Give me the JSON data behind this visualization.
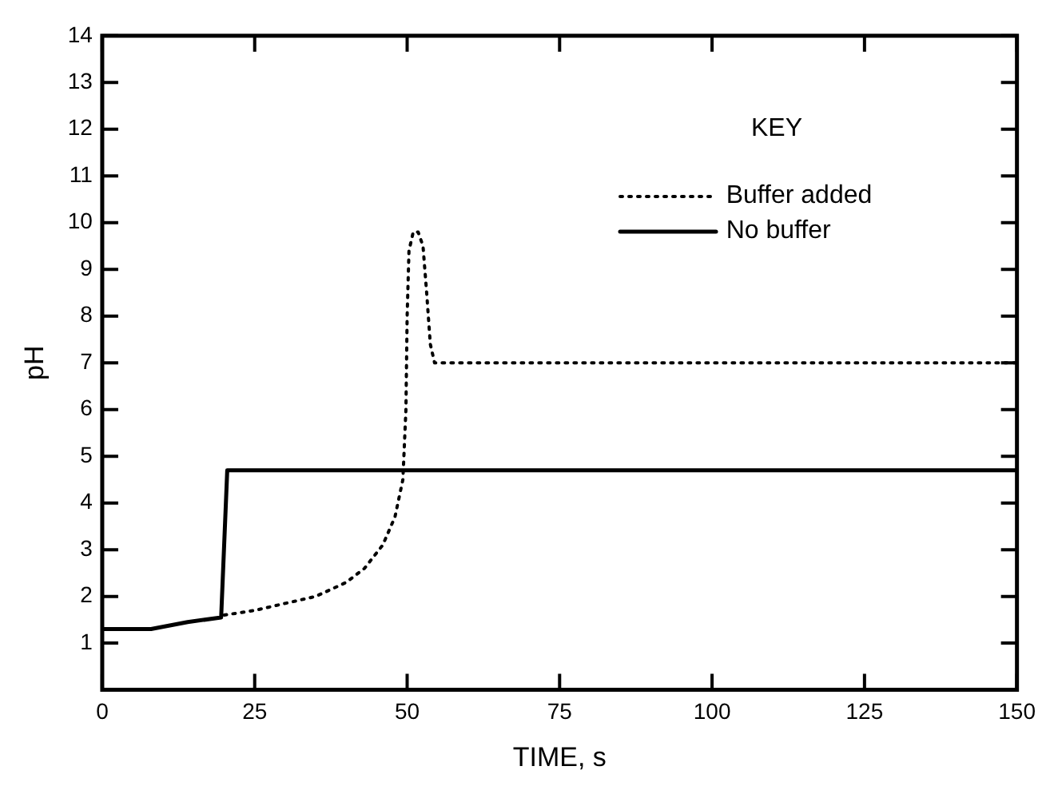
{
  "chart_data": {
    "type": "line",
    "xlabel": "TIME, s",
    "ylabel": "pH",
    "legend_title": "KEY",
    "legend": "top right",
    "grid": false,
    "marker": "none",
    "xlim": [
      0,
      150
    ],
    "xticks": [
      0,
      25,
      50,
      75,
      100,
      125,
      150
    ],
    "ylim": [
      0,
      14
    ],
    "yticks": [
      {
        "value": 0,
        "label": null
      },
      1,
      2,
      3,
      4,
      5,
      6,
      7,
      8,
      9,
      10,
      11,
      12,
      13,
      14
    ],
    "series": [
      {
        "name": "Buffer added",
        "color": "#000000",
        "line_style": "dotted",
        "x": [
          20,
          25,
          30,
          35,
          40,
          43,
          46,
          48,
          49.3,
          49.8,
          50,
          50.3,
          51,
          51.8,
          52.6,
          53.2,
          53.8,
          54.5,
          150
        ],
        "values": [
          1.6,
          1.7,
          1.85,
          2.0,
          2.3,
          2.6,
          3.1,
          3.7,
          4.5,
          6.0,
          8.0,
          9.4,
          9.8,
          9.8,
          9.5,
          8.5,
          7.4,
          7.0,
          7.0
        ]
      },
      {
        "name": "No buffer",
        "color": "#000000",
        "line_style": "solid",
        "x": [
          0,
          8,
          14,
          19.5,
          20.5,
          150
        ],
        "values": [
          1.3,
          1.3,
          1.45,
          1.55,
          4.7,
          4.7
        ]
      }
    ]
  }
}
